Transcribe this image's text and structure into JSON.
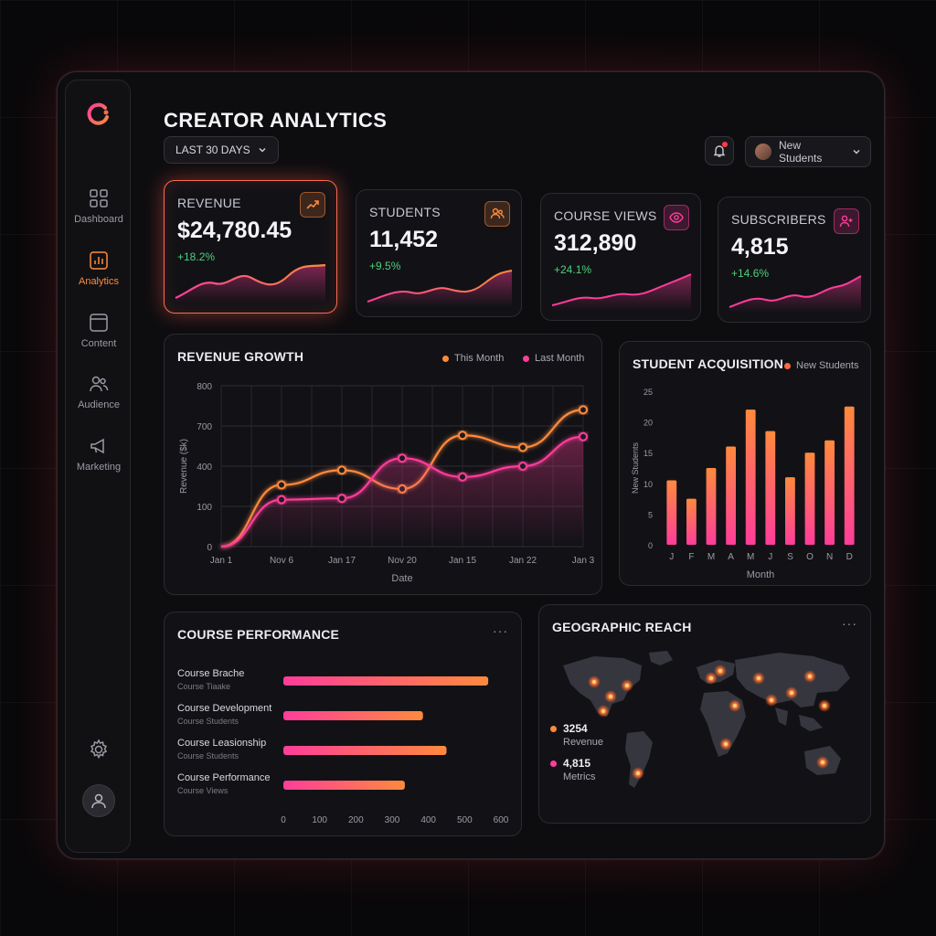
{
  "header": {
    "title": "CREATOR ANALYTICS",
    "date_range": "LAST 30 DAYS",
    "student_select": "New Students"
  },
  "sidebar": {
    "items": [
      {
        "label": "Dashboard",
        "icon": "grid-icon"
      },
      {
        "label": "Analytics",
        "icon": "bar-chart-icon",
        "active": true
      },
      {
        "label": "Content",
        "icon": "square-icon"
      },
      {
        "label": "Audience",
        "icon": "users-icon"
      },
      {
        "label": "Marketing",
        "icon": "megaphone-icon"
      }
    ]
  },
  "kpis": [
    {
      "label": "REVENUE",
      "value": "$24,780.45",
      "change": "+18.2%",
      "icon": "trend-up-icon"
    },
    {
      "label": "STUDENTS",
      "value": "11,452",
      "change": "+9.5%",
      "icon": "users-icon"
    },
    {
      "label": "COURSE VIEWS",
      "value": "312,890",
      "change": "+24.1%",
      "icon": "eye-icon"
    },
    {
      "label": "SUBSCRIBERS",
      "value": "4,815",
      "change": "+14.6%",
      "icon": "user-plus-icon"
    }
  ],
  "colors": {
    "orange": "#ff8a3d",
    "pink": "#ff3d9a",
    "green": "#4cd07a",
    "accent": "#ff6a50"
  },
  "revenue_growth": {
    "title": "REVENUE GROWTH",
    "legend": [
      "This Month",
      "Last Month"
    ]
  },
  "student_acquisition": {
    "title": "STUDENT ACQUISITION",
    "legend": "New Students"
  },
  "course_performance": {
    "title": "COURSE PERFORMANCE",
    "more": "···"
  },
  "geo": {
    "title": "GEOGRAPHIC REACH",
    "more": "···",
    "stats": [
      {
        "value": "3254",
        "label": "Revenue"
      },
      {
        "value": "4,815",
        "label": "Metrics"
      }
    ]
  },
  "chart_data": [
    {
      "type": "line",
      "title": "REVENUE GROWTH",
      "xlabel": "Date",
      "ylabel": "Revenue ($k)",
      "x": [
        "Jan 1",
        "Nov 6",
        "Jan 17",
        "Nov 20",
        "Jan 15",
        "Jan 22",
        "Jan 3"
      ],
      "yticks": [
        0,
        100,
        400,
        700,
        800
      ],
      "series": [
        {
          "name": "This Month",
          "values": [
            0,
            260,
            370,
            230,
            630,
            540,
            740
          ]
        },
        {
          "name": "Last Month",
          "values": [
            0,
            150,
            160,
            460,
            320,
            400,
            620
          ]
        }
      ],
      "legend": "top-right",
      "grid": true
    },
    {
      "type": "bar",
      "title": "STUDENT ACQUISITION",
      "xlabel": "Month",
      "ylabel": "New Students",
      "categories": [
        "J",
        "F",
        "M",
        "A",
        "M",
        "J",
        "S",
        "O",
        "N",
        "D"
      ],
      "series": [
        {
          "name": "New Students",
          "values": [
            10.5,
            7.5,
            12.5,
            16,
            22,
            18.5,
            11,
            15,
            17,
            22.5
          ]
        }
      ],
      "ylim": [
        0,
        25
      ],
      "yticks": [
        0,
        5,
        10,
        15,
        20,
        25
      ]
    },
    {
      "type": "bar",
      "title": "COURSE PERFORMANCE",
      "orientation": "horizontal",
      "categories": [
        {
          "name": "Course Brache",
          "sub": "Course Tiaake"
        },
        {
          "name": "Course Development",
          "sub": "Course Students"
        },
        {
          "name": "Course Leasionship",
          "sub": "Course Students"
        },
        {
          "name": "Course Performance",
          "sub": "Course Views"
        }
      ],
      "values": [
        565,
        385,
        450,
        335
      ],
      "xticks": [
        0,
        100,
        200,
        300,
        400,
        500,
        600
      ],
      "xlim": [
        0,
        600
      ]
    }
  ]
}
